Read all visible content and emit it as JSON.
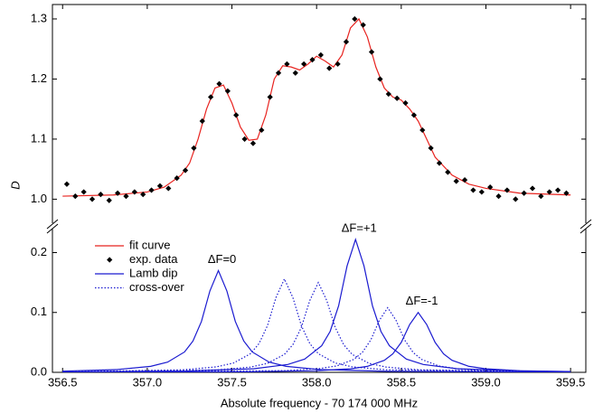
{
  "chart_data": {
    "type": "line",
    "xlabel": "Absolute frequency - 70 174 000 MHz",
    "xlim": [
      356.44,
      359.59
    ],
    "xticks": [
      356.5,
      {
        "value": 357,
        "label": "357.0"
      },
      357.5,
      {
        "value": 358,
        "label": "358.0"
      },
      358.5,
      {
        "value": 359,
        "label": "359.0"
      },
      359.5
    ],
    "panels": [
      {
        "ylabel": "D",
        "ylim": [
          0.96,
          1.324
        ],
        "yticks": [
          {
            "value": 1,
            "label": "1.0"
          },
          1.1,
          1.2,
          1.3
        ],
        "series": [
          {
            "name": "fit curve",
            "type": "line",
            "color": "#e8231f",
            "dash": "solid",
            "x": [
              356.5,
              356.8,
              357.0,
              357.1,
              357.2,
              357.25,
              357.3,
              357.35,
              357.4,
              357.45,
              357.5,
              357.55,
              357.6,
              357.65,
              357.7,
              357.75,
              357.8,
              357.85,
              357.9,
              357.95,
              358.0,
              358.05,
              358.1,
              358.15,
              358.2,
              358.25,
              358.3,
              358.35,
              358.4,
              358.45,
              358.5,
              358.55,
              358.6,
              358.65,
              358.7,
              358.8,
              358.9,
              359.0,
              359.2,
              359.5
            ],
            "values": [
              1.005,
              1.007,
              1.012,
              1.02,
              1.04,
              1.06,
              1.1,
              1.15,
              1.185,
              1.19,
              1.16,
              1.12,
              1.098,
              1.1,
              1.14,
              1.2,
              1.222,
              1.22,
              1.215,
              1.225,
              1.238,
              1.23,
              1.22,
              1.24,
              1.285,
              1.3,
              1.27,
              1.22,
              1.185,
              1.17,
              1.165,
              1.15,
              1.13,
              1.1,
              1.07,
              1.04,
              1.025,
              1.018,
              1.01,
              1.007
            ]
          },
          {
            "name": "exp. data",
            "type": "scatter",
            "color": "#000000",
            "x": [
              356.525,
              356.575,
              356.625,
              356.675,
              356.725,
              356.775,
              356.825,
              356.875,
              356.925,
              356.975,
              357.025,
              357.075,
              357.125,
              357.175,
              357.225,
              357.275,
              357.325,
              357.375,
              357.425,
              357.475,
              357.525,
              357.575,
              357.625,
              357.675,
              357.725,
              357.775,
              357.825,
              357.875,
              357.925,
              357.975,
              358.025,
              358.075,
              358.125,
              358.175,
              358.225,
              358.275,
              358.325,
              358.375,
              358.425,
              358.475,
              358.525,
              358.575,
              358.625,
              358.675,
              358.725,
              358.775,
              358.825,
              358.875,
              358.925,
              358.975,
              359.025,
              359.075,
              359.125,
              359.175,
              359.225,
              359.275,
              359.325,
              359.375,
              359.425,
              359.475
            ],
            "values": [
              1.025,
              1.005,
              1.012,
              1.0,
              1.008,
              0.998,
              1.01,
              1.005,
              1.012,
              1.008,
              1.015,
              1.022,
              1.018,
              1.035,
              1.048,
              1.085,
              1.13,
              1.17,
              1.192,
              1.18,
              1.14,
              1.1,
              1.093,
              1.115,
              1.17,
              1.21,
              1.225,
              1.21,
              1.225,
              1.232,
              1.24,
              1.218,
              1.225,
              1.262,
              1.3,
              1.29,
              1.245,
              1.2,
              1.175,
              1.168,
              1.16,
              1.14,
              1.115,
              1.085,
              1.06,
              1.045,
              1.03,
              1.032,
              1.015,
              1.012,
              1.02,
              1.005,
              1.015,
              1.0,
              1.01,
              1.018,
              1.005,
              1.012,
              1.015,
              1.01
            ]
          }
        ]
      },
      {
        "ylim": [
          0,
          0.24
        ],
        "yticks": [
          {
            "value": 0,
            "label": "0.0"
          },
          0.1,
          0.2
        ],
        "legend": "upper left",
        "series": [
          {
            "name": "Lamb dip",
            "type": "line",
            "color": "#1a1ad0",
            "dash": "solid",
            "curves": [
              {
                "label": "ΔF=0",
                "x": [
                  356.5,
                  356.82,
                  357.02,
                  357.12,
                  357.22,
                  357.27,
                  357.32,
                  357.37,
                  357.42,
                  357.47,
                  357.52,
                  357.57,
                  357.62,
                  357.72,
                  357.82,
                  358.02,
                  358.42,
                  359.5
                ],
                "values": [
                  0.002,
                  0.0046,
                  0.01,
                  0.017,
                  0.034,
                  0.0523,
                  0.085,
                  0.136,
                  0.17,
                  0.136,
                  0.085,
                  0.0523,
                  0.034,
                  0.017,
                  0.01,
                  0.0046,
                  0.0017,
                  0.0004
                ]
              },
              {
                "label": "ΔF=+1",
                "x": [
                  356.5,
                  357.23,
                  357.63,
                  357.83,
                  357.93,
                  358.03,
                  358.08,
                  358.13,
                  358.18,
                  358.23,
                  358.28,
                  358.33,
                  358.38,
                  358.43,
                  358.53,
                  358.63,
                  358.83,
                  359.23,
                  359.5
                ],
                "values": [
                  0.0007,
                  0.0022,
                  0.006,
                  0.0131,
                  0.0222,
                  0.0444,
                  0.0683,
                  0.111,
                  0.1776,
                  0.222,
                  0.1776,
                  0.111,
                  0.0683,
                  0.0444,
                  0.0222,
                  0.0131,
                  0.006,
                  0.0022,
                  0.0014
                ]
              },
              {
                "label": "ΔF=-1",
                "x": [
                  356.5,
                  357.6,
                  358.0,
                  358.2,
                  358.3,
                  358.4,
                  358.45,
                  358.5,
                  358.55,
                  358.6,
                  358.65,
                  358.7,
                  358.75,
                  358.8,
                  358.9,
                  359.0,
                  359.2,
                  359.5
                ],
                "values": [
                  0.0002,
                  0.001,
                  0.0027,
                  0.0059,
                  0.01,
                  0.02,
                  0.0308,
                  0.05,
                  0.08,
                  0.1,
                  0.08,
                  0.05,
                  0.0308,
                  0.02,
                  0.01,
                  0.0059,
                  0.0027,
                  0.0012
                ]
              }
            ]
          },
          {
            "name": "cross-over",
            "type": "line",
            "color": "#1a1ad0",
            "dash": "dotted",
            "curves": [
              {
                "x": [
                  356.5,
                  357.21,
                  357.41,
                  357.51,
                  357.61,
                  357.66,
                  357.71,
                  357.76,
                  357.81,
                  357.86,
                  357.91,
                  357.96,
                  358.01,
                  358.11,
                  358.21,
                  358.41,
                  359.5
                ],
                "values": [
                  0.0009,
                  0.0042,
                  0.0092,
                  0.0156,
                  0.0312,
                  0.048,
                  0.078,
                  0.1248,
                  0.156,
                  0.1248,
                  0.078,
                  0.048,
                  0.0312,
                  0.0156,
                  0.0092,
                  0.0042,
                  0.0005
                ]
              },
              {
                "x": [
                  356.5,
                  357.41,
                  357.61,
                  357.71,
                  357.81,
                  357.86,
                  357.91,
                  357.96,
                  358.01,
                  358.06,
                  358.11,
                  358.16,
                  358.21,
                  358.31,
                  358.41,
                  358.61,
                  359.5
                ],
                "values": [
                  0.0007,
                  0.0041,
                  0.0088,
                  0.015,
                  0.03,
                  0.0462,
                  0.075,
                  0.12,
                  0.15,
                  0.12,
                  0.075,
                  0.0462,
                  0.03,
                  0.015,
                  0.0088,
                  0.0041,
                  0.0007
                ]
              },
              {
                "x": [
                  356.5,
                  357.82,
                  358.02,
                  358.12,
                  358.22,
                  358.27,
                  358.32,
                  358.37,
                  358.42,
                  358.47,
                  358.52,
                  358.57,
                  358.62,
                  358.72,
                  358.82,
                  359.02,
                  359.5
                ],
                "values": [
                  0.0003,
                  0.0029,
                  0.0064,
                  0.0108,
                  0.0216,
                  0.0332,
                  0.054,
                  0.0864,
                  0.108,
                  0.0864,
                  0.054,
                  0.0332,
                  0.0216,
                  0.0108,
                  0.0064,
                  0.0029,
                  0.0009
                ]
              }
            ]
          }
        ]
      }
    ]
  }
}
